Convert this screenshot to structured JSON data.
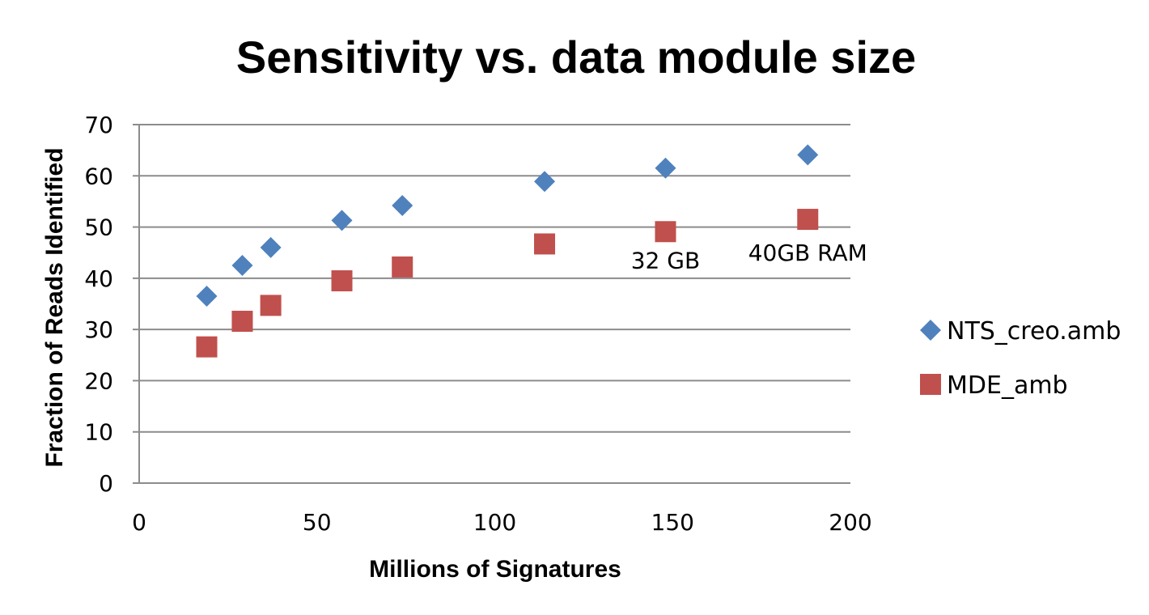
{
  "chart_data": {
    "type": "scatter",
    "title": "Sensitivity vs. data module size",
    "xlabel": "Millions of Signatures",
    "ylabel": "Fraction of Reads Identified",
    "xlim": [
      0,
      200
    ],
    "ylim": [
      0,
      70
    ],
    "x_ticks": [
      0,
      50,
      100,
      150,
      200
    ],
    "y_ticks": [
      0,
      10,
      20,
      30,
      40,
      50,
      60,
      70
    ],
    "grid": "horizontal",
    "legend_position": "right",
    "series": [
      {
        "name": "NTS_creo.amb",
        "marker": "diamond",
        "color": "#4f81bd",
        "x": [
          19,
          29,
          37,
          57,
          74,
          114,
          148,
          188
        ],
        "y": [
          36.5,
          42.5,
          46,
          51.3,
          54.2,
          58.9,
          61.5,
          64.1
        ]
      },
      {
        "name": "MDE_amb",
        "marker": "square",
        "color": "#c0504d",
        "x": [
          19,
          29,
          37,
          57,
          74,
          114,
          148,
          188
        ],
        "y": [
          26.6,
          31.6,
          34.7,
          39.5,
          42.2,
          46.7,
          49.1,
          51.5
        ]
      }
    ],
    "annotations": [
      {
        "text": "32 GB",
        "x": 148,
        "y": 43.5
      },
      {
        "text": "40GB RAM",
        "x": 188,
        "y": 45.0
      }
    ]
  }
}
